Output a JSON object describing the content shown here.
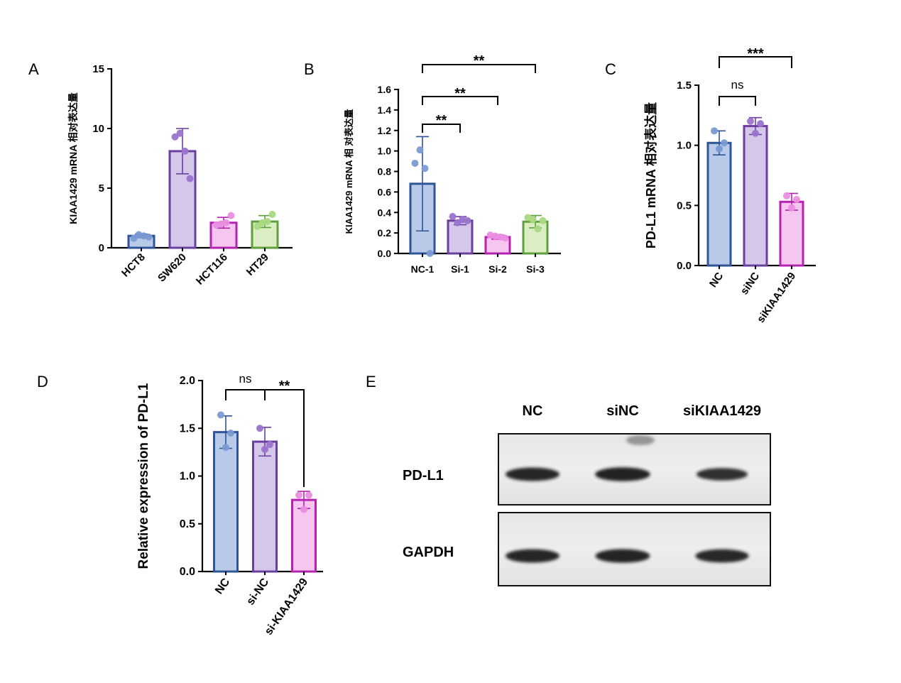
{
  "figure": {
    "panel_labels": [
      "A",
      "B",
      "C",
      "D",
      "E"
    ]
  },
  "chart_data": [
    {
      "panel": "A",
      "type": "bar",
      "ylabel": "KIAA1429 mRNA 相对表达量",
      "categories": [
        "HCT8",
        "SW620",
        "HCT116",
        "HT29"
      ],
      "values": [
        1.0,
        8.1,
        2.1,
        2.2
      ],
      "errors": [
        0.15,
        1.9,
        0.45,
        0.5
      ],
      "points": [
        [
          0.8,
          1.1,
          1.0,
          0.9
        ],
        [
          9.3,
          9.6,
          8.1,
          5.8
        ],
        [
          1.9,
          2.0,
          2.1,
          2.7
        ],
        [
          1.8,
          2.1,
          2.2,
          2.8
        ]
      ],
      "ylim": [
        0,
        15
      ],
      "yticks": [
        0,
        5,
        10,
        15
      ],
      "colors": [
        {
          "fill": "#b9cae8",
          "stroke": "#2d5597",
          "dot": "#7b9ad4"
        },
        {
          "fill": "#d4c7ea",
          "stroke": "#6a3fa0",
          "dot": "#9a74cd"
        },
        {
          "fill": "#f6c6f0",
          "stroke": "#b523b1",
          "dot": "#ea8ee0"
        },
        {
          "fill": "#dbeec3",
          "stroke": "#5fa03c",
          "dot": "#a9d882"
        }
      ],
      "tick_labels_rotated": true,
      "significance": []
    },
    {
      "panel": "B",
      "type": "bar",
      "ylabel": "KIAA1429 mRNA 相 对表达量",
      "categories": [
        "NC-1",
        "Si-1",
        "Si-2",
        "Si-3"
      ],
      "values": [
        0.68,
        0.32,
        0.16,
        0.31
      ],
      "errors": [
        0.46,
        0.04,
        0.02,
        0.06
      ],
      "points": [
        [
          0.88,
          1.01,
          0.83,
          0.0
        ],
        [
          0.36,
          0.3,
          0.33,
          0.32
        ],
        [
          0.18,
          0.17,
          0.16,
          0.15
        ],
        [
          0.35,
          0.33,
          0.24,
          0.32
        ]
      ],
      "ylim": [
        0,
        1.6
      ],
      "yticks": [
        0.0,
        0.2,
        0.4,
        0.6,
        0.8,
        1.0,
        1.2,
        1.4,
        1.6
      ],
      "colors": [
        {
          "fill": "#b9cae8",
          "stroke": "#2d5597",
          "dot": "#7b9ad4"
        },
        {
          "fill": "#d4c7ea",
          "stroke": "#6a3fa0",
          "dot": "#9a74cd"
        },
        {
          "fill": "#f6c6f0",
          "stroke": "#b523b1",
          "dot": "#ea8ee0"
        },
        {
          "fill": "#dbeec3",
          "stroke": "#5fa03c",
          "dot": "#a9d882"
        }
      ],
      "tick_labels_rotated": false,
      "significance": [
        {
          "from": 0,
          "to": 1,
          "label": "**"
        },
        {
          "from": 0,
          "to": 2,
          "label": "**"
        },
        {
          "from": 0,
          "to": 3,
          "label": "**"
        }
      ]
    },
    {
      "panel": "C",
      "type": "bar",
      "ylabel": "PD-L1 mRNA 相对表达量",
      "categories": [
        "NC",
        "siNC",
        "siKIAA1429"
      ],
      "values": [
        1.02,
        1.16,
        0.53
      ],
      "errors": [
        0.1,
        0.07,
        0.07
      ],
      "points": [
        [
          1.12,
          0.97,
          1.02
        ],
        [
          1.2,
          1.1,
          1.18
        ],
        [
          0.58,
          0.48,
          0.55
        ]
      ],
      "ylim": [
        0,
        1.5
      ],
      "yticks": [
        0.0,
        0.5,
        1.0,
        1.5
      ],
      "colors": [
        {
          "fill": "#b9cae8",
          "stroke": "#2d5597",
          "dot": "#7b9ad4"
        },
        {
          "fill": "#d4c7ea",
          "stroke": "#6a3fa0",
          "dot": "#9a74cd"
        },
        {
          "fill": "#f6c6f0",
          "stroke": "#b523b1",
          "dot": "#ea8ee0"
        }
      ],
      "tick_labels_rotated": true,
      "significance": [
        {
          "from": 0,
          "to": 1,
          "label": "ns"
        },
        {
          "from": 0,
          "to": 2,
          "label": "***"
        }
      ]
    },
    {
      "panel": "D",
      "type": "bar",
      "ylabel": "Relative expression of PD-L1",
      "categories": [
        "NC",
        "si-NC",
        "si-KIAA1429"
      ],
      "values": [
        1.46,
        1.36,
        0.75
      ],
      "errors": [
        0.17,
        0.15,
        0.09
      ],
      "points": [
        [
          1.64,
          1.3,
          1.45
        ],
        [
          1.5,
          1.28,
          1.33
        ],
        [
          0.8,
          0.65,
          0.8
        ]
      ],
      "ylim": [
        0,
        2.0
      ],
      "yticks": [
        0.0,
        0.5,
        1.0,
        1.5,
        2.0
      ],
      "colors": [
        {
          "fill": "#b9cae8",
          "stroke": "#2d5597",
          "dot": "#7b9ad4"
        },
        {
          "fill": "#d4c7ea",
          "stroke": "#6a3fa0",
          "dot": "#9a74cd"
        },
        {
          "fill": "#f6c6f0",
          "stroke": "#b523b1",
          "dot": "#ea8ee0"
        }
      ],
      "tick_labels_rotated": true,
      "significance": [
        {
          "from": 0,
          "to": 1,
          "label": "ns"
        },
        {
          "from": 1,
          "to": 2,
          "label": "**"
        }
      ]
    }
  ],
  "blot": {
    "panel": "E",
    "lanes": [
      "NC",
      "siNC",
      "siKIAA1429"
    ],
    "rows": [
      {
        "label": "PD-L1",
        "intensities": [
          1.0,
          1.1,
          0.75
        ]
      },
      {
        "label": "GAPDH",
        "intensities": [
          1.0,
          1.05,
          0.95
        ]
      }
    ]
  }
}
